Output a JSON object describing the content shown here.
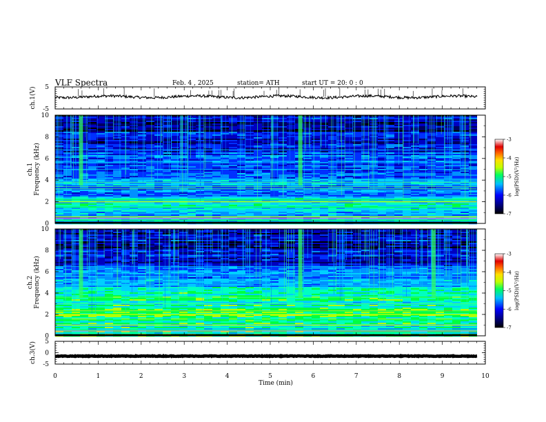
{
  "header": {
    "title": "VLF  Spectra",
    "date": "Feb. 4 ,  2025",
    "station": "station= ATH",
    "start": "start  UT  =     20: 0   : 0"
  },
  "chart_data": [
    {
      "type": "line",
      "name": "ch1-waveform",
      "ylabel": "ch.1(V)",
      "ylim": [
        -5,
        5
      ],
      "yticks": [
        "5",
        "-5"
      ],
      "xlim": [
        0,
        10
      ],
      "baseline_value": 0.5
    },
    {
      "type": "heatmap",
      "name": "ch1-spectrogram",
      "ylabel": "ch.1\nFrequency  (kHz)",
      "ylabel_lines": [
        "ch.1",
        "Frequency  (kHz)"
      ],
      "ylim": [
        0,
        10
      ],
      "yticks": [
        "0",
        "2",
        "4",
        "6",
        "8",
        "10"
      ],
      "xlim": [
        0,
        9.8
      ],
      "bands_khz": [
        0.3,
        0.6,
        1.5,
        2.0,
        2.2,
        3.2,
        3.4,
        3.8,
        4.1,
        5.0,
        5.6,
        6.8
      ],
      "transients_min": [
        0.6,
        5.7
      ],
      "colorbar": {
        "label": "log(PSD)(V²/Hz)",
        "ticks": [
          "-3",
          "-4",
          "-5",
          "-6",
          "-7"
        ],
        "range": [
          -7,
          -3
        ]
      }
    },
    {
      "type": "heatmap",
      "name": "ch2-spectrogram",
      "ylabel": "ch.2\nFrequency  (kHz)",
      "ylabel_lines": [
        "ch.2",
        "Frequency  (kHz)"
      ],
      "ylim": [
        0,
        10
      ],
      "yticks": [
        "0",
        "2",
        "4",
        "6",
        "8",
        "10"
      ],
      "xlim": [
        0,
        9.8
      ],
      "bands_khz": [
        0.5,
        1.0,
        1.5,
        2.0,
        2.3,
        3.0,
        3.6,
        4.7,
        5.6,
        6.5
      ],
      "transients_min": [
        0.6,
        5.7,
        8.8
      ],
      "colorbar": {
        "label": "log(PSD)(V²/Hz)",
        "ticks": [
          "-3",
          "-4",
          "-5",
          "-6",
          "-7"
        ],
        "range": [
          -7,
          -3
        ]
      }
    },
    {
      "type": "line",
      "name": "ch3-waveform",
      "ylabel": "ch.3(V)",
      "ylim": [
        -5,
        5
      ],
      "yticks": [
        "5",
        "0",
        "-5"
      ],
      "xlim": [
        0,
        10
      ],
      "baseline_value": -1.5
    }
  ],
  "xaxis": {
    "label": "Time  (min)",
    "ticks": [
      "0",
      "1",
      "2",
      "3",
      "4",
      "5",
      "6",
      "7",
      "8",
      "9",
      "10"
    ],
    "range": [
      0,
      10
    ]
  }
}
